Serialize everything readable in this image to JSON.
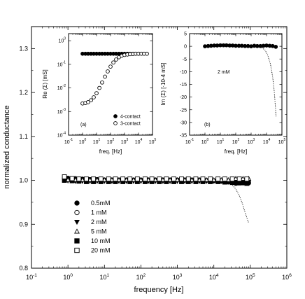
{
  "chart_data": [
    {
      "type": "scatter",
      "xlabel": "frequency [Hz]",
      "ylabel": "normalized conductance",
      "x_scale": "log",
      "xlim": [
        0.1,
        1000000
      ],
      "ylim": [
        0.8,
        1.35
      ],
      "x_tick_labels": [
        "10-1",
        "100",
        "101",
        "102",
        "103",
        "104",
        "105",
        "106"
      ],
      "y_tick_labels": [
        "0.8",
        "0.9",
        "1.0",
        "1.1",
        "1.2",
        "1.3"
      ],
      "legend": {
        "position": "lower-left",
        "entries": [
          {
            "label": "0.5mM",
            "marker": "filled-circle"
          },
          {
            "label": "1 mM",
            "marker": "open-circle"
          },
          {
            "label": "2 mM",
            "marker": "filled-triangle-down"
          },
          {
            "label": "5 mM",
            "marker": "open-triangle-up"
          },
          {
            "label": "10 mM",
            "marker": "filled-square"
          },
          {
            "label": "20 mM",
            "marker": "open-square"
          }
        ]
      },
      "series": [
        {
          "name": "0.5mM",
          "marker": "filled-circle",
          "x": [
            1,
            1.6,
            2.5,
            4,
            6.3,
            10,
            16,
            25,
            40,
            63,
            100,
            160,
            250,
            400,
            630,
            1000,
            1600,
            2500,
            4000,
            6300,
            10000,
            16000,
            25000,
            40000,
            63000,
            90000
          ],
          "y": [
            1.005,
            1.004,
            1.003,
            1.002,
            1.002,
            1.001,
            1.001,
            1.001,
            1.001,
            1.001,
            1.001,
            1.001,
            1.001,
            1.001,
            1.001,
            1.001,
            1.001,
            1.001,
            1.001,
            1.0,
            0.999,
            0.998,
            0.996,
            0.993,
            0.994,
            0.994
          ]
        },
        {
          "name": "1 mM",
          "marker": "open-circle",
          "x": [
            0.8,
            1.3,
            2,
            3.2,
            5,
            8,
            13,
            20,
            32,
            50,
            80,
            130,
            200,
            320,
            500,
            800,
            1300,
            2000,
            3200,
            5000,
            8000,
            13000,
            20000,
            32000,
            50000,
            80000
          ],
          "y": [
            1.006,
            1.003,
            1.003,
            1.002,
            1.002,
            1.002,
            1.002,
            1.002,
            1.002,
            1.002,
            1.002,
            1.002,
            1.002,
            1.002,
            1.002,
            1.002,
            1.002,
            1.002,
            1.002,
            1.002,
            1.002,
            1.002,
            1.002,
            1.002,
            1.002,
            1.002
          ]
        },
        {
          "name": "2 mM",
          "marker": "filled-triangle-down",
          "x": [
            1,
            1.6,
            2.5,
            4,
            6.3,
            10,
            16,
            25,
            40,
            63,
            100,
            160,
            250,
            400,
            630,
            1000,
            1600,
            2500,
            4000,
            6300,
            10000,
            16000,
            25000,
            40000,
            63000,
            90000
          ],
          "y": [
            0.999,
            0.998,
            0.998,
            0.998,
            0.998,
            0.998,
            0.998,
            0.998,
            0.998,
            0.998,
            0.998,
            0.998,
            0.998,
            0.998,
            0.998,
            0.998,
            0.998,
            0.998,
            0.998,
            0.998,
            0.998,
            0.998,
            0.997,
            0.996,
            0.995,
            0.995
          ]
        },
        {
          "name": "5 mM",
          "marker": "open-triangle-up",
          "x": [
            1,
            1.6,
            2.5,
            4,
            6.3,
            10,
            16,
            25,
            40,
            63,
            100,
            160,
            250,
            400,
            630,
            1000,
            1600,
            2500,
            4000,
            6300,
            10000,
            16000,
            25000,
            40000,
            63000,
            90000
          ],
          "y": [
            1.001,
            1.001,
            1.001,
            1.001,
            1.001,
            1.001,
            1.001,
            1.001,
            1.001,
            1.001,
            1.001,
            1.001,
            1.001,
            1.001,
            1.001,
            1.001,
            1.001,
            1.001,
            1.001,
            1.001,
            1.001,
            1.001,
            1.001,
            1.004,
            1.004,
            1.004
          ]
        },
        {
          "name": "10 mM",
          "marker": "filled-square",
          "x": [
            0.8,
            1.3,
            2,
            3.2,
            5,
            8,
            13,
            20,
            32,
            50,
            80,
            130,
            200,
            320,
            500,
            800,
            1300,
            2000,
            3200,
            5000,
            8000,
            13000,
            20000,
            32000,
            50000,
            80000
          ],
          "y": [
            1.0,
            0.999,
            0.998,
            0.997,
            0.997,
            0.997,
            0.997,
            0.997,
            0.997,
            0.997,
            0.997,
            0.997,
            0.997,
            0.997,
            0.997,
            0.997,
            0.997,
            0.997,
            0.997,
            0.997,
            0.997,
            0.997,
            0.996,
            0.995,
            0.994,
            0.993
          ]
        },
        {
          "name": "20 mM",
          "marker": "open-square",
          "x": [
            0.8,
            1.3,
            2,
            3.2,
            5,
            8,
            13,
            20,
            32,
            50,
            80,
            130,
            200,
            320,
            500,
            800,
            1300,
            2000,
            3200,
            5000,
            8000,
            13000,
            20000,
            32000,
            50000,
            80000
          ],
          "y": [
            1.008,
            1.004,
            1.003,
            1.003,
            1.003,
            1.003,
            1.003,
            1.003,
            1.003,
            1.003,
            1.003,
            1.003,
            1.003,
            1.003,
            1.003,
            1.003,
            1.003,
            1.003,
            1.003,
            1.003,
            1.003,
            1.003,
            1.003,
            1.003,
            1.003,
            1.003
          ]
        },
        {
          "marker": "dotted-line",
          "x": [
            30000,
            40000,
            50000,
            60000,
            70000,
            80000,
            90000
          ],
          "y": [
            0.992,
            0.98,
            0.965,
            0.948,
            0.93,
            0.915,
            0.903
          ]
        }
      ]
    },
    {
      "type": "scatter",
      "panel_label": "(a)",
      "xlabel": "freq. [Hz]",
      "ylabel": "Re (Σ) [mS]",
      "x_scale": "log",
      "y_scale": "log",
      "xlim": [
        0.1,
        100000
      ],
      "ylim": [
        0.0001,
        2
      ],
      "x_tick_labels": [
        "10-1",
        "100",
        "101",
        "102",
        "103",
        "104",
        "105"
      ],
      "y_tick_labels": [
        "100",
        "10-1",
        "10-2",
        "10-3",
        "10-4"
      ],
      "legend": {
        "position": "lower-right",
        "entries": [
          {
            "label": "4-contact",
            "marker": "filled-circle"
          },
          {
            "label": "3-contact",
            "marker": "open-circle"
          }
        ]
      },
      "series": [
        {
          "name": "4-contact",
          "marker": "filled-circle",
          "x": [
            1,
            1.6,
            2.5,
            4,
            6.3,
            10,
            16,
            25,
            40,
            63,
            100,
            160,
            250,
            400,
            630,
            1000,
            1600,
            2500,
            4000,
            6300,
            10000
          ],
          "y": [
            0.28,
            0.28,
            0.28,
            0.28,
            0.28,
            0.28,
            0.28,
            0.28,
            0.28,
            0.28,
            0.28,
            0.28,
            0.28,
            0.28,
            0.28,
            0.28,
            0.28,
            0.28,
            0.28,
            0.28,
            0.28
          ]
        },
        {
          "name": "3-contact",
          "marker": "open-circle",
          "x": [
            1,
            1.6,
            2.5,
            4,
            6.3,
            10,
            16,
            25,
            40,
            63,
            100,
            160,
            250,
            400,
            630,
            1000,
            1600,
            2500,
            4000,
            6300,
            10000,
            16000,
            25000,
            40000
          ],
          "y": [
            0.0022,
            0.0023,
            0.0025,
            0.003,
            0.004,
            0.006,
            0.01,
            0.017,
            0.03,
            0.05,
            0.08,
            0.12,
            0.16,
            0.2,
            0.23,
            0.25,
            0.26,
            0.27,
            0.275,
            0.28,
            0.28,
            0.28,
            0.28,
            0.28
          ]
        }
      ]
    },
    {
      "type": "line",
      "panel_label": "(b)",
      "annotation": "2 mM",
      "xlabel": "freq. [Hz]",
      "ylabel": "Im (Σ) [·10-4 mS]",
      "x_scale": "log",
      "xlim": [
        0.1,
        100000
      ],
      "ylim": [
        -35,
        5
      ],
      "x_tick_labels": [
        "10-1",
        "100",
        "101",
        "102",
        "103",
        "104",
        "105"
      ],
      "y_tick_labels": [
        "5",
        "0",
        "-5",
        "-10",
        "-15",
        "-20",
        "-25",
        "-30",
        "-35"
      ],
      "series": [
        {
          "marker": "filled-circle",
          "x": [
            1,
            1.6,
            2.5,
            4,
            6.3,
            10,
            16,
            25,
            40,
            63,
            100,
            160,
            250,
            400,
            630,
            1000,
            1600,
            2500,
            4000,
            6300,
            10000,
            16000,
            25000,
            40000
          ],
          "y": [
            0,
            0.1,
            0.2,
            0.3,
            0.3,
            0.4,
            0.4,
            0.4,
            0.3,
            0.3,
            0.2,
            0.2,
            0.2,
            0.1,
            0.1,
            0,
            0.2,
            0.1,
            0.1,
            0.2,
            0.3,
            0.2,
            0.1,
            -0.2
          ]
        },
        {
          "marker": "dotted-line",
          "x": [
            5000,
            8000,
            12000,
            18000,
            25000,
            32000,
            38000,
            42000
          ],
          "y": [
            -0.5,
            -1.5,
            -3.5,
            -7,
            -12,
            -18,
            -24,
            -28
          ]
        }
      ]
    }
  ]
}
